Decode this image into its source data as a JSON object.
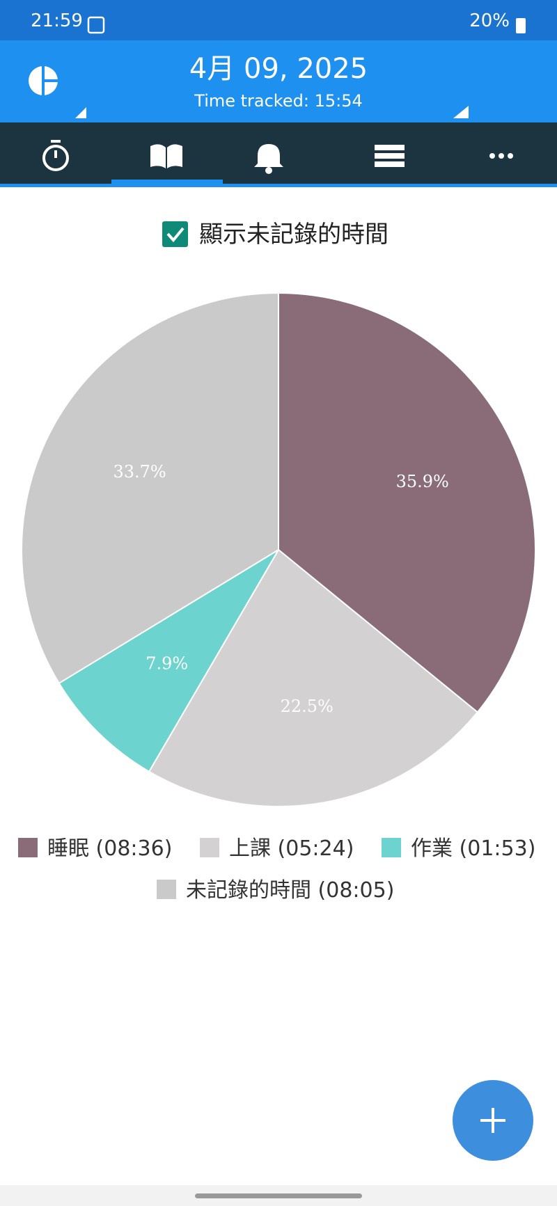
{
  "status_bar": {
    "time": "21:59",
    "battery": "20%"
  },
  "header": {
    "date": "4月 09, 2025",
    "subtitle": "Time tracked: 15:54"
  },
  "checkbox": {
    "label": "顯示未記錄的時間",
    "checked": true
  },
  "chart_data": {
    "type": "pie",
    "categories": [
      "睡眠 (08:36)",
      "上課 (05:24)",
      "作業 (01:53)",
      "未記錄的時間 (08:05)"
    ],
    "values": [
      35.9,
      22.5,
      7.9,
      33.7
    ],
    "value_labels": [
      "35.9%",
      "22.5%",
      "7.9%",
      "33.7%"
    ],
    "colors": [
      "#8a6b78",
      "#d3d1d2",
      "#6dd3cf",
      "#cacaca"
    ]
  }
}
